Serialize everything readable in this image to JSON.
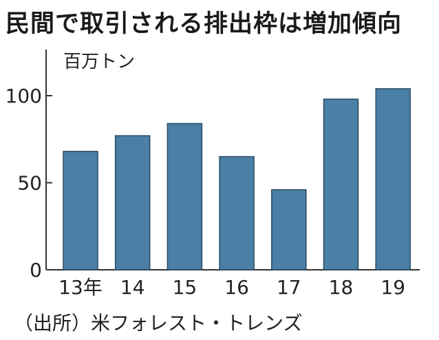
{
  "title": "民間で取引される排出枠は増加傾向",
  "source": "（出所）米フォレスト・トレンズ",
  "colors": {
    "bar": "#4a7fa6",
    "bar_stroke": "#2a4a63",
    "axis": "#333333"
  },
  "chart_data": {
    "type": "bar",
    "title": "民間で取引される排出枠は増加傾向",
    "unit_label": "百万トン",
    "categories": [
      "13年",
      "14",
      "15",
      "16",
      "17",
      "18",
      "19"
    ],
    "values": [
      68,
      77,
      84,
      65,
      46,
      98,
      104
    ],
    "ylim": [
      0,
      127
    ],
    "yticks": [
      0,
      50,
      100
    ],
    "grid": false,
    "legend": "none"
  }
}
